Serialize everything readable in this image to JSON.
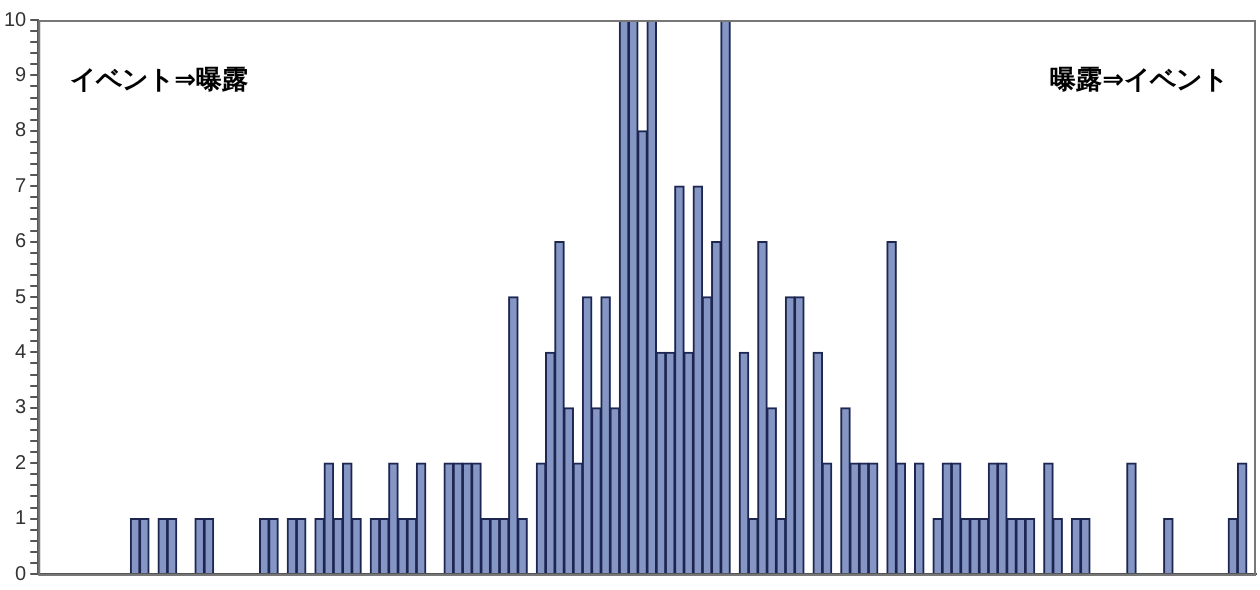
{
  "chart_data": {
    "type": "bar",
    "categories": [
      null,
      null,
      null,
      null,
      null,
      null,
      null,
      null,
      null,
      null,
      null,
      null,
      null,
      null,
      null,
      null,
      null,
      null,
      null,
      null,
      null,
      null,
      null,
      null,
      null,
      null,
      null,
      null,
      null,
      null,
      null,
      null,
      null,
      null,
      null,
      null,
      null,
      null,
      null,
      null,
      null,
      null,
      null,
      null,
      null,
      null,
      null,
      null,
      null,
      null,
      null,
      null,
      null,
      null,
      null,
      null,
      null,
      null,
      null,
      null,
      null,
      null,
      null,
      null,
      null,
      null,
      null,
      null,
      null,
      null,
      null,
      null,
      null,
      null,
      null,
      null,
      null,
      null,
      null,
      null,
      null,
      null,
      null,
      null,
      null,
      null,
      null,
      null,
      null,
      null,
      null,
      null,
      null,
      null,
      null,
      null,
      null,
      null,
      null,
      null,
      null,
      null,
      null,
      null,
      null,
      null,
      null,
      null,
      null,
      null,
      null,
      null,
      null,
      null,
      null,
      null,
      null,
      null,
      null,
      null,
      null,
      null,
      null,
      null,
      null,
      null,
      null,
      null,
      null,
      null,
      null,
      null
    ],
    "values": [
      0,
      0,
      0,
      0,
      0,
      0,
      0,
      0,
      0,
      0,
      1,
      1,
      0,
      1,
      1,
      0,
      0,
      1,
      1,
      0,
      0,
      0,
      0,
      0,
      1,
      1,
      0,
      1,
      1,
      0,
      1,
      2,
      1,
      2,
      1,
      0,
      1,
      1,
      2,
      1,
      1,
      2,
      0,
      0,
      2,
      2,
      2,
      2,
      1,
      1,
      1,
      5,
      1,
      0,
      2,
      4,
      6,
      3,
      2,
      5,
      3,
      5,
      3,
      10,
      10,
      8,
      10,
      4,
      4,
      7,
      4,
      7,
      5,
      6,
      10,
      0,
      4,
      1,
      6,
      3,
      1,
      5,
      5,
      0,
      4,
      2,
      0,
      3,
      2,
      2,
      2,
      0,
      6,
      2,
      0,
      2,
      0,
      1,
      2,
      2,
      1,
      1,
      1,
      2,
      2,
      1,
      1,
      1,
      0,
      2,
      1,
      0,
      1,
      1,
      0,
      0,
      0,
      0,
      2,
      0,
      0,
      0,
      1,
      0,
      0,
      0,
      0,
      0,
      0,
      1,
      2,
      0
    ],
    "color": "#8596c4",
    "ylim": [
      0,
      10
    ],
    "yticks": [
      0,
      {
        "value": 0.2,
        "label": null
      },
      {
        "value": 0.4,
        "label": null
      },
      {
        "value": 0.6,
        "label": null
      },
      {
        "value": 0.8,
        "label": null
      },
      1,
      {
        "value": 1.2,
        "label": null
      },
      {
        "value": 1.4,
        "label": null
      },
      {
        "value": 1.6,
        "label": null
      },
      {
        "value": 1.8,
        "label": null
      },
      2,
      {
        "value": 2.2,
        "label": null
      },
      {
        "value": 2.4,
        "label": null
      },
      {
        "value": 2.6,
        "label": null
      },
      {
        "value": 2.8,
        "label": null
      },
      3,
      {
        "value": 3.2,
        "label": null
      },
      {
        "value": 3.4,
        "label": null
      },
      {
        "value": 3.6,
        "label": null
      },
      {
        "value": 3.8,
        "label": null
      },
      4,
      {
        "value": 4.2,
        "label": null
      },
      {
        "value": 4.4,
        "label": null
      },
      {
        "value": 4.6,
        "label": null
      },
      {
        "value": 4.8,
        "label": null
      },
      5,
      {
        "value": 5.2,
        "label": null
      },
      {
        "value": 5.4,
        "label": null
      },
      {
        "value": 5.6,
        "label": null
      },
      {
        "value": 5.8,
        "label": null
      },
      6,
      {
        "value": 6.2,
        "label": null
      },
      {
        "value": 6.4,
        "label": null
      },
      {
        "value": 6.6,
        "label": null
      },
      {
        "value": 6.8,
        "label": null
      },
      7,
      {
        "value": 7.2,
        "label": null
      },
      {
        "value": 7.4,
        "label": null
      },
      {
        "value": 7.6,
        "label": null
      },
      {
        "value": 7.8,
        "label": null
      },
      8,
      {
        "value": 8.2,
        "label": null
      },
      {
        "value": 8.4,
        "label": null
      },
      {
        "value": 8.6,
        "label": null
      },
      {
        "value": 8.8,
        "label": null
      },
      9,
      {
        "value": 9.2,
        "label": null
      },
      {
        "value": 9.4,
        "label": null
      },
      {
        "value": 9.6,
        "label": null
      },
      {
        "value": 9.8,
        "label": null
      },
      10
    ],
    "grid": false,
    "legend": false,
    "annotations": [
      "イベント⇒曝露",
      "曝露⇒イベント"
    ]
  }
}
